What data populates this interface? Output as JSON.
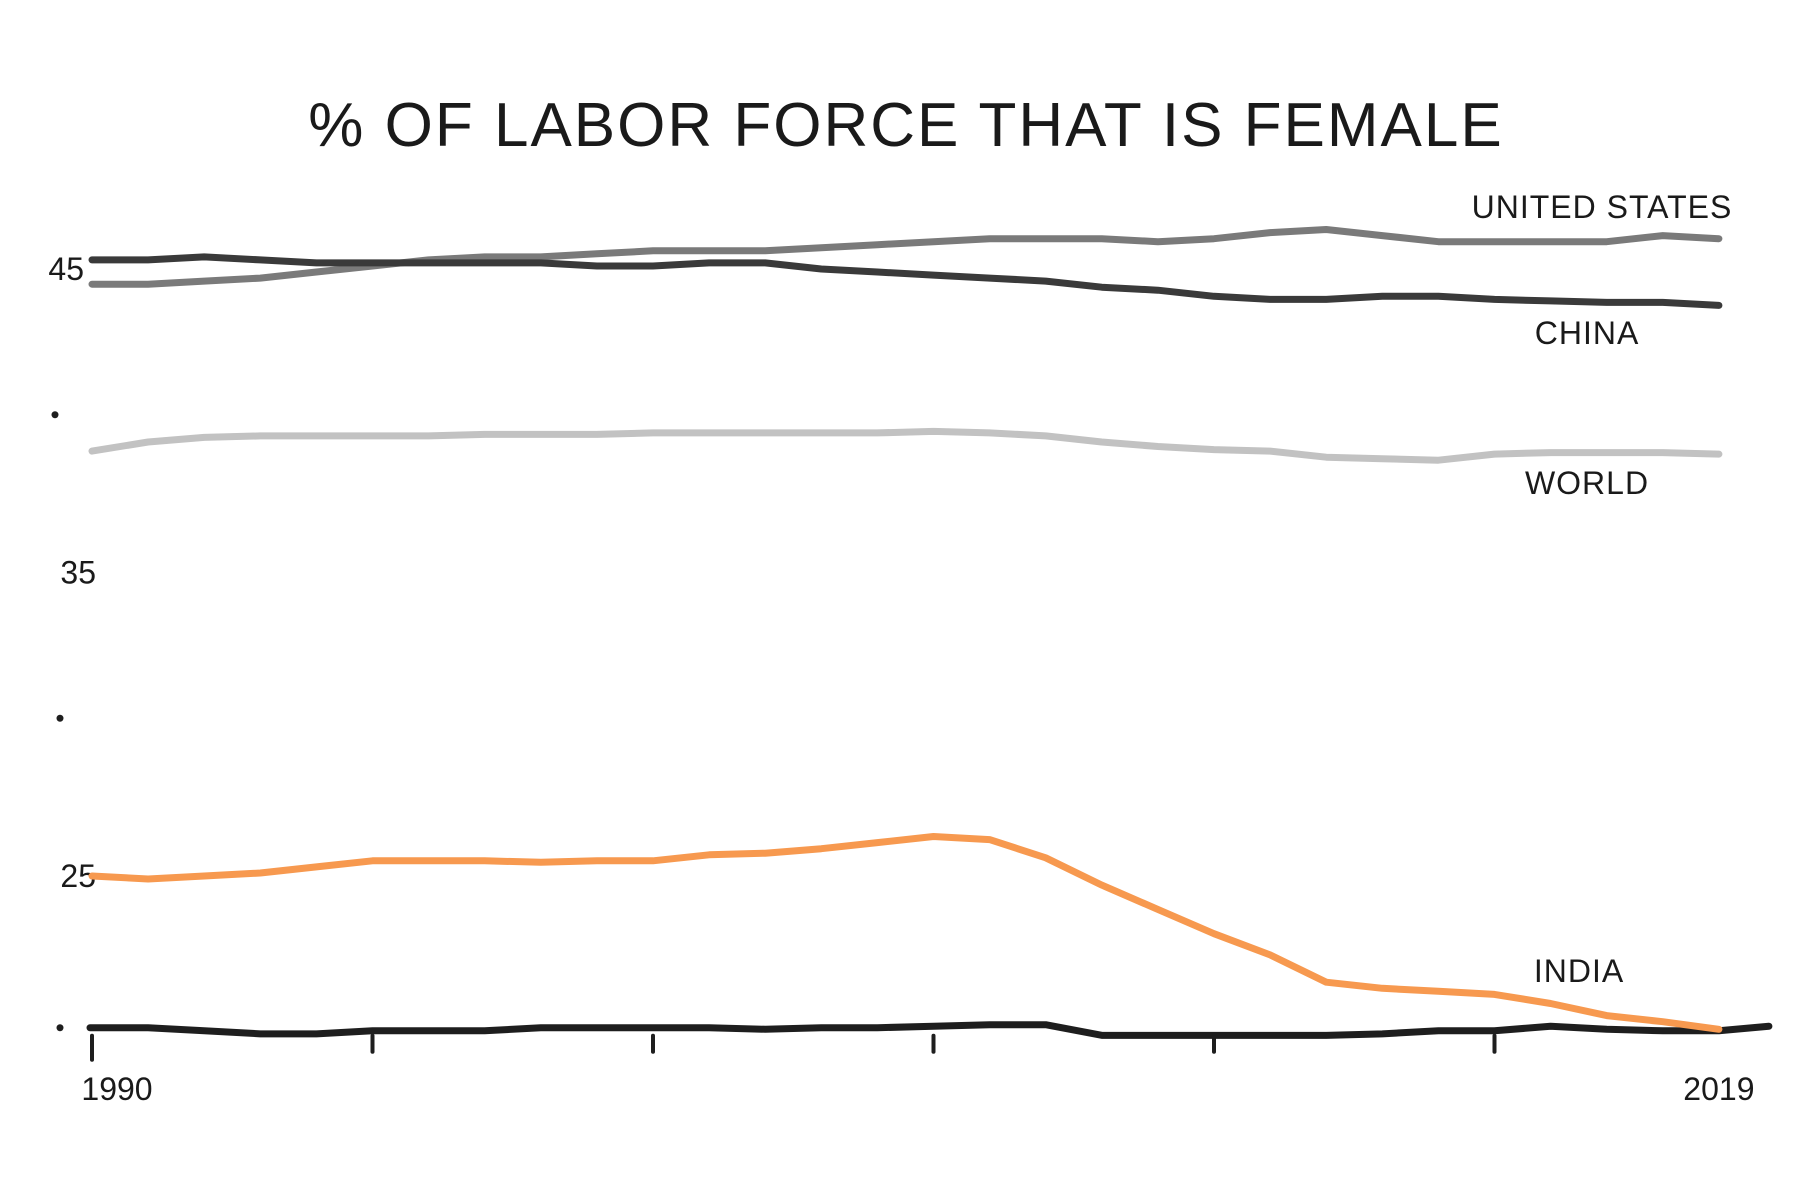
{
  "chart_data": {
    "type": "line",
    "title": "% OF LABOR FORCE THAT IS FEMALE",
    "xlabel": "",
    "ylabel": "",
    "xlim": [
      1990,
      2019
    ],
    "ylim": [
      20,
      47
    ],
    "x_tick_labels": [
      "1990",
      "2019"
    ],
    "x_ticks": [
      1990,
      1995,
      2000,
      2005,
      2010,
      2015
    ],
    "y_tick_labels": [
      "45",
      "35",
      "25"
    ],
    "y_ticks": [
      45,
      35,
      25
    ],
    "y_minor_dots": [
      40,
      30,
      20
    ],
    "grid": false,
    "legend": "direct labels at right",
    "x": [
      1990,
      1991,
      1992,
      1993,
      1994,
      1995,
      1996,
      1997,
      1998,
      1999,
      2000,
      2001,
      2002,
      2003,
      2004,
      2005,
      2006,
      2007,
      2008,
      2009,
      2010,
      2011,
      2012,
      2013,
      2014,
      2015,
      2016,
      2017,
      2018,
      2019
    ],
    "series": [
      {
        "name": "UNITED STATES",
        "color": "#7a7a7a",
        "values": [
          44.5,
          44.5,
          44.6,
          44.7,
          44.9,
          45.1,
          45.3,
          45.4,
          45.4,
          45.5,
          45.6,
          45.6,
          45.6,
          45.7,
          45.8,
          45.9,
          46.0,
          46.0,
          46.0,
          45.9,
          46.0,
          46.2,
          46.3,
          46.1,
          45.9,
          45.9,
          45.9,
          45.9,
          46.1,
          46.0
        ]
      },
      {
        "name": "CHINA",
        "color": "#3a3a3a",
        "values": [
          45.3,
          45.3,
          45.4,
          45.3,
          45.2,
          45.2,
          45.2,
          45.2,
          45.2,
          45.1,
          45.1,
          45.2,
          45.2,
          45.0,
          44.9,
          44.8,
          44.7,
          44.6,
          44.4,
          44.3,
          44.1,
          44.0,
          44.0,
          44.1,
          44.1,
          44.0,
          43.95,
          43.9,
          43.9,
          43.8
        ]
      },
      {
        "name": "WORLD",
        "color": "#c2c2c2",
        "values": [
          39.0,
          39.3,
          39.45,
          39.5,
          39.5,
          39.5,
          39.5,
          39.55,
          39.55,
          39.55,
          39.6,
          39.6,
          39.6,
          39.6,
          39.6,
          39.65,
          39.6,
          39.5,
          39.3,
          39.15,
          39.05,
          39.0,
          38.8,
          38.75,
          38.7,
          38.9,
          38.95,
          38.95,
          38.95,
          38.9
        ]
      },
      {
        "name": "INDIA",
        "color": "#f7994f",
        "values": [
          25.0,
          24.9,
          25.0,
          25.1,
          25.3,
          25.5,
          25.5,
          25.5,
          25.45,
          25.5,
          25.5,
          25.7,
          25.75,
          25.9,
          26.1,
          26.3,
          26.2,
          25.6,
          24.7,
          23.9,
          23.1,
          22.4,
          21.5,
          21.3,
          21.2,
          21.1,
          20.8,
          20.4,
          20.2,
          19.95
        ]
      }
    ]
  }
}
